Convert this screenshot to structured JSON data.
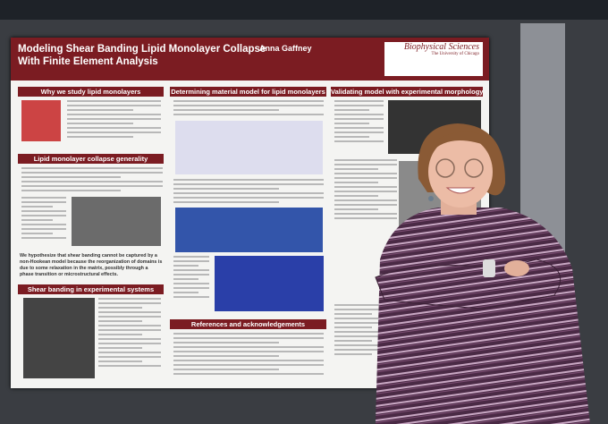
{
  "poster": {
    "title": "Modeling Shear Banding Lipid Monolayer Collapse With Finite Element Analysis",
    "author": "Anna Gaffney",
    "logo": {
      "name": "Biophysical Sciences",
      "institution": "The University of Chicago"
    },
    "sections": [
      "Why we study lipid monolayers",
      "Lipid monolayer collapse generality",
      "Shear banding in experimental systems",
      "Determining material model for lipid monolayers",
      "References and acknowledgements",
      "Validating model with experimental morphology"
    ],
    "hypothesis": "We hypothesize that shear banding cannot be captured by a non-Hookean model because the reorganization of domains is due to some relaxation in the matrix, possibly through a phase transition or microstructural effects."
  }
}
